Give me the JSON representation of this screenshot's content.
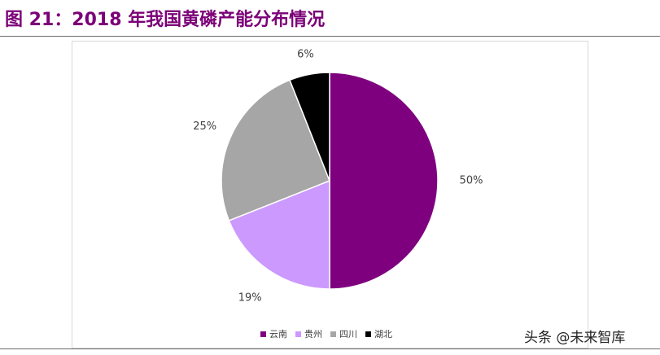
{
  "figure": {
    "title": "图 21：2018 年我国黄磷产能分布情况"
  },
  "watermark": "头条 @未来智库",
  "chart_data": {
    "type": "pie",
    "title": "",
    "slices": [
      {
        "label": "云南",
        "value": 50,
        "value_label": "50%",
        "color": "#7f007f"
      },
      {
        "label": "贵州",
        "value": 19,
        "value_label": "19%",
        "color": "#cc99ff"
      },
      {
        "label": "四川",
        "value": 25,
        "value_label": "25%",
        "color": "#a6a6a6"
      },
      {
        "label": "湖北",
        "value": 6,
        "value_label": "6%",
        "color": "#000000"
      }
    ],
    "start": "12 o'clock",
    "direction": "clockwise",
    "legend": {
      "placement": "bottom"
    }
  }
}
